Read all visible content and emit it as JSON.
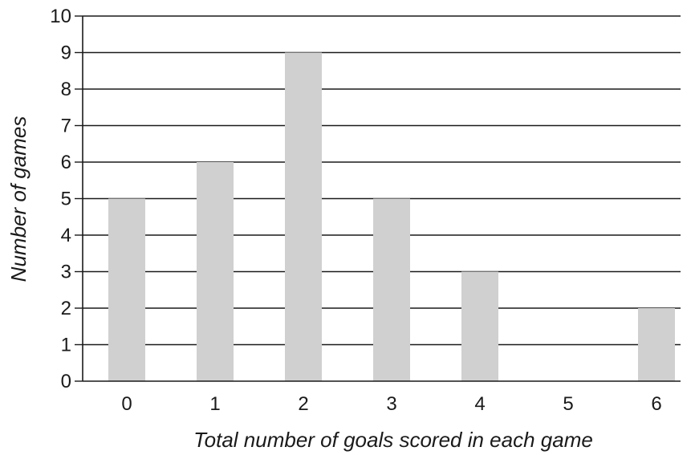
{
  "chart_data": {
    "type": "bar",
    "title": "",
    "xlabel": "Total number of goals scored in each game",
    "ylabel": "Number of games",
    "categories": [
      "0",
      "1",
      "2",
      "3",
      "4",
      "5",
      "6"
    ],
    "values": [
      5,
      6,
      9,
      5,
      3,
      0,
      2
    ],
    "ylim": [
      0,
      10
    ],
    "yticks": [
      0,
      1,
      2,
      3,
      4,
      5,
      6,
      7,
      8,
      9,
      10
    ],
    "grid": true,
    "legend": "none",
    "bar_color": "#d0d0d0",
    "axis_color": "#1a1a1a"
  }
}
